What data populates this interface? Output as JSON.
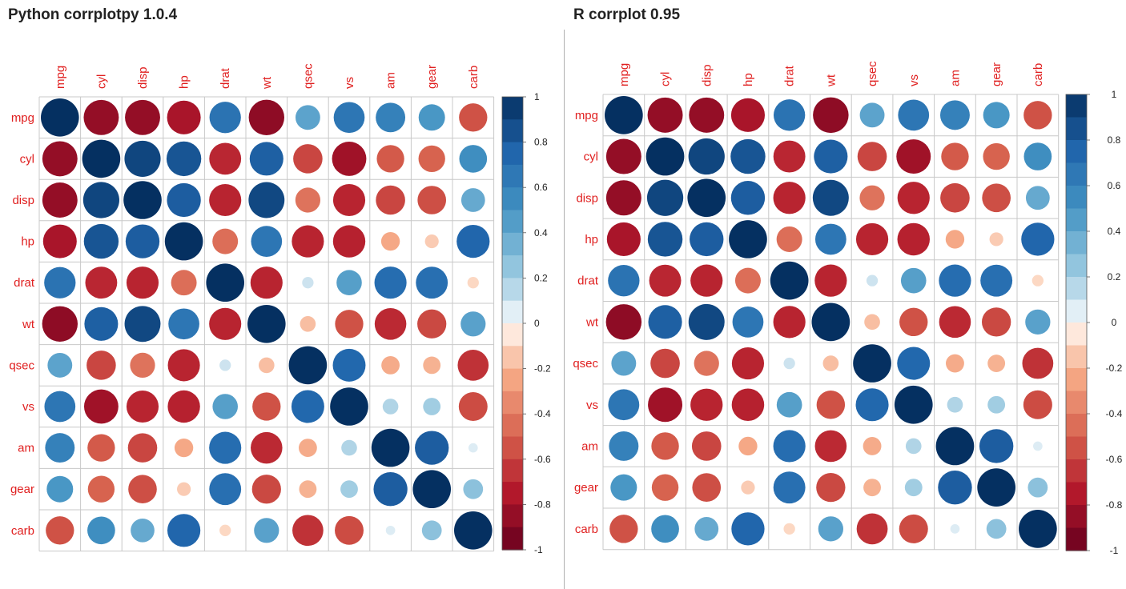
{
  "chart_data": [
    {
      "type": "heatmap",
      "style": "circle",
      "title": "Python corrplotpy 1.0.4",
      "variables": [
        "mpg",
        "cyl",
        "disp",
        "hp",
        "drat",
        "wt",
        "qsec",
        "vs",
        "am",
        "gear",
        "carb"
      ],
      "values": [
        [
          1.0,
          -0.85,
          -0.85,
          -0.78,
          0.68,
          -0.87,
          0.42,
          0.66,
          0.6,
          0.48,
          -0.55
        ],
        [
          -0.85,
          1.0,
          0.9,
          0.83,
          -0.7,
          0.78,
          -0.59,
          -0.81,
          -0.52,
          -0.49,
          0.53
        ],
        [
          -0.85,
          0.9,
          1.0,
          0.79,
          -0.71,
          0.89,
          -0.43,
          -0.71,
          -0.59,
          -0.56,
          0.39
        ],
        [
          -0.78,
          0.83,
          0.79,
          1.0,
          -0.45,
          0.66,
          -0.71,
          -0.72,
          -0.24,
          -0.13,
          0.75
        ],
        [
          0.68,
          -0.7,
          -0.71,
          -0.45,
          1.0,
          -0.71,
          0.09,
          0.44,
          0.71,
          0.7,
          -0.09
        ],
        [
          -0.87,
          0.78,
          0.89,
          0.66,
          -0.71,
          1.0,
          -0.17,
          -0.55,
          -0.69,
          -0.58,
          0.43
        ],
        [
          0.42,
          -0.59,
          -0.43,
          -0.71,
          0.09,
          -0.17,
          1.0,
          0.74,
          -0.23,
          -0.21,
          -0.66
        ],
        [
          0.66,
          -0.81,
          -0.71,
          -0.72,
          0.44,
          -0.55,
          0.74,
          1.0,
          0.17,
          0.21,
          -0.57
        ],
        [
          0.6,
          -0.52,
          -0.59,
          -0.24,
          0.71,
          -0.69,
          -0.23,
          0.17,
          1.0,
          0.79,
          0.06
        ],
        [
          0.48,
          -0.49,
          -0.56,
          -0.13,
          0.7,
          -0.58,
          -0.21,
          0.21,
          0.79,
          1.0,
          0.27
        ],
        [
          -0.55,
          0.53,
          0.39,
          0.75,
          -0.09,
          0.43,
          -0.66,
          -0.57,
          0.06,
          0.27,
          1.0
        ]
      ],
      "colorbar_ticks": [
        "1",
        "0.8",
        "0.6",
        "0.4",
        "0.2",
        "0",
        "-0.2",
        "-0.4",
        "-0.6",
        "-0.8",
        "-1"
      ],
      "colorbar_range": [
        -1,
        1
      ],
      "label_color": "#e02020",
      "grid_color": "#c8c8c8"
    },
    {
      "type": "heatmap",
      "style": "circle",
      "title": "R corrplot 0.95",
      "variables": [
        "mpg",
        "cyl",
        "disp",
        "hp",
        "drat",
        "wt",
        "qsec",
        "vs",
        "am",
        "gear",
        "carb"
      ],
      "values": [
        [
          1.0,
          -0.85,
          -0.85,
          -0.78,
          0.68,
          -0.87,
          0.42,
          0.66,
          0.6,
          0.48,
          -0.55
        ],
        [
          -0.85,
          1.0,
          0.9,
          0.83,
          -0.7,
          0.78,
          -0.59,
          -0.81,
          -0.52,
          -0.49,
          0.53
        ],
        [
          -0.85,
          0.9,
          1.0,
          0.79,
          -0.71,
          0.89,
          -0.43,
          -0.71,
          -0.59,
          -0.56,
          0.39
        ],
        [
          -0.78,
          0.83,
          0.79,
          1.0,
          -0.45,
          0.66,
          -0.71,
          -0.72,
          -0.24,
          -0.13,
          0.75
        ],
        [
          0.68,
          -0.7,
          -0.71,
          -0.45,
          1.0,
          -0.71,
          0.09,
          0.44,
          0.71,
          0.7,
          -0.09
        ],
        [
          -0.87,
          0.78,
          0.89,
          0.66,
          -0.71,
          1.0,
          -0.17,
          -0.55,
          -0.69,
          -0.58,
          0.43
        ],
        [
          0.42,
          -0.59,
          -0.43,
          -0.71,
          0.09,
          -0.17,
          1.0,
          0.74,
          -0.23,
          -0.21,
          -0.66
        ],
        [
          0.66,
          -0.81,
          -0.71,
          -0.72,
          0.44,
          -0.55,
          0.74,
          1.0,
          0.17,
          0.21,
          -0.57
        ],
        [
          0.6,
          -0.52,
          -0.59,
          -0.24,
          0.71,
          -0.69,
          -0.23,
          0.17,
          1.0,
          0.79,
          0.06
        ],
        [
          0.48,
          -0.49,
          -0.56,
          -0.13,
          0.7,
          -0.58,
          -0.21,
          0.21,
          0.79,
          1.0,
          0.27
        ],
        [
          -0.55,
          0.53,
          0.39,
          0.75,
          -0.09,
          0.43,
          -0.66,
          -0.57,
          0.06,
          0.27,
          1.0
        ]
      ],
      "colorbar_ticks": [
        "1",
        "0.8",
        "0.6",
        "0.4",
        "0.2",
        "0",
        "-0.2",
        "-0.4",
        "-0.6",
        "-0.8",
        "-1"
      ],
      "colorbar_range": [
        -1,
        1
      ],
      "label_color": "#e02020",
      "grid_color": "#c8c8c8"
    }
  ]
}
